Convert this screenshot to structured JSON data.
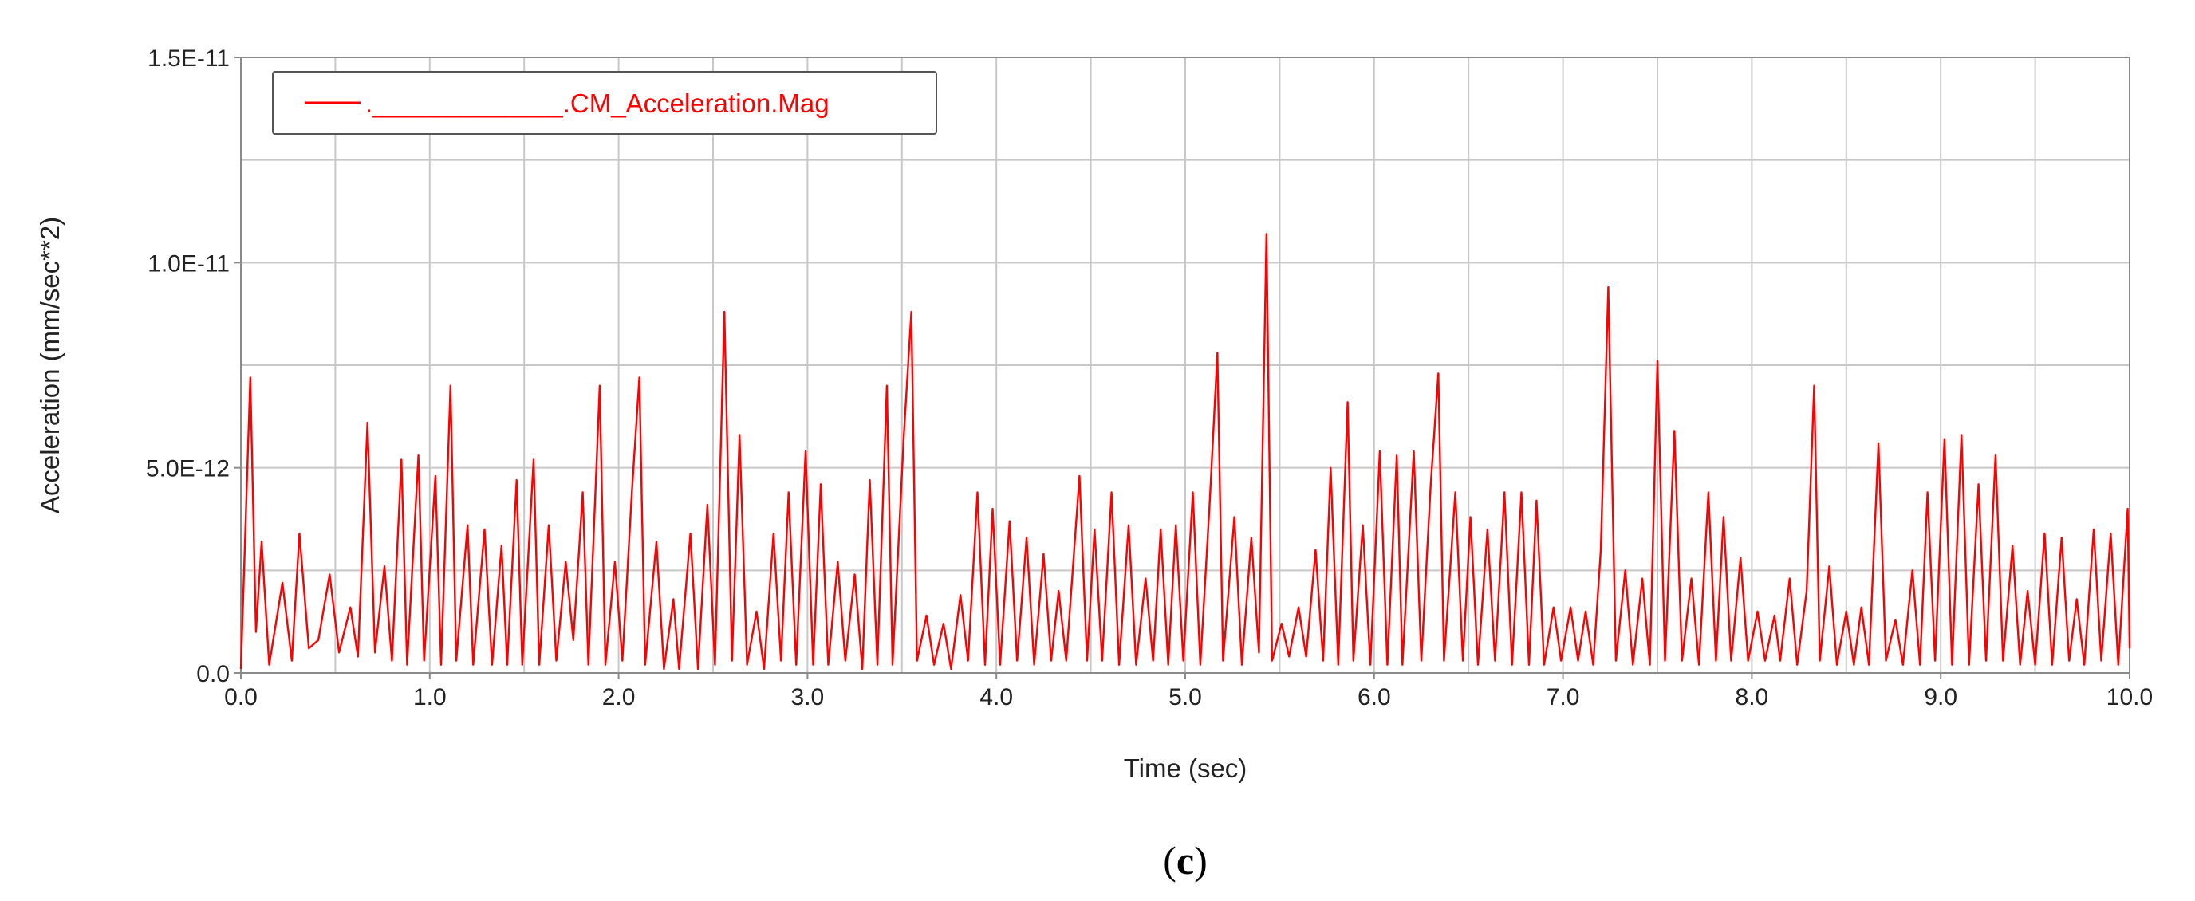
{
  "chart_data": {
    "type": "line",
    "title": "",
    "xlabel": "Time (sec)",
    "ylabel": "Acceleration (mm/sec**2)",
    "xlim": [
      0.0,
      10.0
    ],
    "ylim": [
      0.0,
      1.5e-11
    ],
    "x_ticks": [
      "0.0",
      "1.0",
      "2.0",
      "3.0",
      "4.0",
      "5.0",
      "6.0",
      "7.0",
      "8.0",
      "9.0",
      "10.0"
    ],
    "y_ticks": [
      "0.0",
      "5.0E-12",
      "1.0E-11",
      "1.5E-11"
    ],
    "grid": true,
    "legend_position": "top-left",
    "series": [
      {
        "name": "._____________.CM_Acceleration.Mag",
        "color": "#ff0000",
        "peaks": [
          [
            0.0,
            0.1
          ],
          [
            0.05,
            7.2
          ],
          [
            0.08,
            1.0
          ],
          [
            0.11,
            3.2
          ],
          [
            0.15,
            0.2
          ],
          [
            0.22,
            2.2
          ],
          [
            0.27,
            0.3
          ],
          [
            0.31,
            3.4
          ],
          [
            0.36,
            0.6
          ],
          [
            0.41,
            0.8
          ],
          [
            0.47,
            2.4
          ],
          [
            0.52,
            0.5
          ],
          [
            0.58,
            1.6
          ],
          [
            0.62,
            0.4
          ],
          [
            0.67,
            6.1
          ],
          [
            0.71,
            0.5
          ],
          [
            0.76,
            2.6
          ],
          [
            0.8,
            0.3
          ],
          [
            0.85,
            5.2
          ],
          [
            0.88,
            0.2
          ],
          [
            0.94,
            5.3
          ],
          [
            0.97,
            0.3
          ],
          [
            1.03,
            4.8
          ],
          [
            1.06,
            0.2
          ],
          [
            1.11,
            7.0
          ],
          [
            1.14,
            0.3
          ],
          [
            1.2,
            3.6
          ],
          [
            1.23,
            0.2
          ],
          [
            1.29,
            3.5
          ],
          [
            1.33,
            0.2
          ],
          [
            1.38,
            3.1
          ],
          [
            1.41,
            0.2
          ],
          [
            1.46,
            4.7
          ],
          [
            1.49,
            0.2
          ],
          [
            1.55,
            5.2
          ],
          [
            1.58,
            0.2
          ],
          [
            1.63,
            3.6
          ],
          [
            1.67,
            0.3
          ],
          [
            1.72,
            2.7
          ],
          [
            1.76,
            0.8
          ],
          [
            1.81,
            4.4
          ],
          [
            1.84,
            0.2
          ],
          [
            1.9,
            7.0
          ],
          [
            1.93,
            0.2
          ],
          [
            1.98,
            2.7
          ],
          [
            2.02,
            0.3
          ],
          [
            2.07,
            4.4
          ],
          [
            2.11,
            7.2
          ],
          [
            2.14,
            0.2
          ],
          [
            2.2,
            3.2
          ],
          [
            2.24,
            0.1
          ],
          [
            2.29,
            1.8
          ],
          [
            2.32,
            0.1
          ],
          [
            2.38,
            3.4
          ],
          [
            2.42,
            0.1
          ],
          [
            2.47,
            4.1
          ],
          [
            2.51,
            0.2
          ],
          [
            2.56,
            8.8
          ],
          [
            2.6,
            0.3
          ],
          [
            2.64,
            5.8
          ],
          [
            2.68,
            0.2
          ],
          [
            2.73,
            1.5
          ],
          [
            2.77,
            0.1
          ],
          [
            2.82,
            3.4
          ],
          [
            2.86,
            0.3
          ],
          [
            2.9,
            4.4
          ],
          [
            2.94,
            0.2
          ],
          [
            2.99,
            5.4
          ],
          [
            3.03,
            0.2
          ],
          [
            3.07,
            4.6
          ],
          [
            3.11,
            0.2
          ],
          [
            3.16,
            2.7
          ],
          [
            3.2,
            0.3
          ],
          [
            3.25,
            2.4
          ],
          [
            3.29,
            0.1
          ],
          [
            3.33,
            4.7
          ],
          [
            3.37,
            0.2
          ],
          [
            3.42,
            7.0
          ],
          [
            3.45,
            0.2
          ],
          [
            3.51,
            5.8
          ],
          [
            3.55,
            8.8
          ],
          [
            3.58,
            0.3
          ],
          [
            3.63,
            1.4
          ],
          [
            3.67,
            0.2
          ],
          [
            3.72,
            1.2
          ],
          [
            3.76,
            0.1
          ],
          [
            3.81,
            1.9
          ],
          [
            3.85,
            0.3
          ],
          [
            3.9,
            4.4
          ],
          [
            3.94,
            0.2
          ],
          [
            3.98,
            4.0
          ],
          [
            4.02,
            0.2
          ],
          [
            4.07,
            3.7
          ],
          [
            4.11,
            0.3
          ],
          [
            4.16,
            3.3
          ],
          [
            4.2,
            0.2
          ],
          [
            4.25,
            2.9
          ],
          [
            4.29,
            0.3
          ],
          [
            4.33,
            2.0
          ],
          [
            4.37,
            0.3
          ],
          [
            4.44,
            4.8
          ],
          [
            4.48,
            0.3
          ],
          [
            4.52,
            3.5
          ],
          [
            4.56,
            0.3
          ],
          [
            4.61,
            4.4
          ],
          [
            4.65,
            0.2
          ],
          [
            4.7,
            3.6
          ],
          [
            4.74,
            0.2
          ],
          [
            4.79,
            2.3
          ],
          [
            4.83,
            0.3
          ],
          [
            4.87,
            3.5
          ],
          [
            4.91,
            0.2
          ],
          [
            4.95,
            3.6
          ],
          [
            4.99,
            0.3
          ],
          [
            5.04,
            4.4
          ],
          [
            5.08,
            0.2
          ],
          [
            5.13,
            4.2
          ],
          [
            5.17,
            7.8
          ],
          [
            5.2,
            0.3
          ],
          [
            5.26,
            3.8
          ],
          [
            5.3,
            0.2
          ],
          [
            5.35,
            3.3
          ],
          [
            5.39,
            0.5
          ],
          [
            5.43,
            10.7
          ],
          [
            5.46,
            0.3
          ],
          [
            5.51,
            1.2
          ],
          [
            5.55,
            0.4
          ],
          [
            5.6,
            1.6
          ],
          [
            5.64,
            0.4
          ],
          [
            5.69,
            3.0
          ],
          [
            5.73,
            0.3
          ],
          [
            5.77,
            5.0
          ],
          [
            5.81,
            0.2
          ],
          [
            5.86,
            6.6
          ],
          [
            5.89,
            0.3
          ],
          [
            5.94,
            3.6
          ],
          [
            5.98,
            0.2
          ],
          [
            6.03,
            5.4
          ],
          [
            6.07,
            0.2
          ],
          [
            6.12,
            5.3
          ],
          [
            6.15,
            0.2
          ],
          [
            6.21,
            5.4
          ],
          [
            6.25,
            0.3
          ],
          [
            6.3,
            4.6
          ],
          [
            6.34,
            7.3
          ],
          [
            6.37,
            0.3
          ],
          [
            6.43,
            4.4
          ],
          [
            6.47,
            0.3
          ],
          [
            6.51,
            3.8
          ],
          [
            6.55,
            0.2
          ],
          [
            6.6,
            3.5
          ],
          [
            6.64,
            0.3
          ],
          [
            6.69,
            4.4
          ],
          [
            6.73,
            0.2
          ],
          [
            6.78,
            4.4
          ],
          [
            6.82,
            0.2
          ],
          [
            6.86,
            4.2
          ],
          [
            6.9,
            0.2
          ],
          [
            6.95,
            1.6
          ],
          [
            6.99,
            0.3
          ],
          [
            7.04,
            1.6
          ],
          [
            7.08,
            0.3
          ],
          [
            7.12,
            1.5
          ],
          [
            7.16,
            0.2
          ],
          [
            7.2,
            3.0
          ],
          [
            7.24,
            9.4
          ],
          [
            7.28,
            0.3
          ],
          [
            7.33,
            2.5
          ],
          [
            7.37,
            0.2
          ],
          [
            7.42,
            2.3
          ],
          [
            7.46,
            0.2
          ],
          [
            7.5,
            7.6
          ],
          [
            7.54,
            0.3
          ],
          [
            7.59,
            5.9
          ],
          [
            7.63,
            0.3
          ],
          [
            7.68,
            2.3
          ],
          [
            7.72,
            0.2
          ],
          [
            7.77,
            4.4
          ],
          [
            7.81,
            0.3
          ],
          [
            7.85,
            3.8
          ],
          [
            7.89,
            0.3
          ],
          [
            7.94,
            2.8
          ],
          [
            7.98,
            0.3
          ],
          [
            8.03,
            1.5
          ],
          [
            8.07,
            0.3
          ],
          [
            8.12,
            1.4
          ],
          [
            8.15,
            0.3
          ],
          [
            8.2,
            2.3
          ],
          [
            8.24,
            0.2
          ],
          [
            8.29,
            2.0
          ],
          [
            8.33,
            7.0
          ],
          [
            8.36,
            0.3
          ],
          [
            8.41,
            2.6
          ],
          [
            8.45,
            0.2
          ],
          [
            8.5,
            1.5
          ],
          [
            8.54,
            0.2
          ],
          [
            8.58,
            1.6
          ],
          [
            8.62,
            0.2
          ],
          [
            8.67,
            5.6
          ],
          [
            8.71,
            0.3
          ],
          [
            8.76,
            1.3
          ],
          [
            8.8,
            0.2
          ],
          [
            8.85,
            2.5
          ],
          [
            8.89,
            0.2
          ],
          [
            8.93,
            4.4
          ],
          [
            8.97,
            0.3
          ],
          [
            9.02,
            5.7
          ],
          [
            9.06,
            0.2
          ],
          [
            9.11,
            5.8
          ],
          [
            9.15,
            0.2
          ],
          [
            9.2,
            4.6
          ],
          [
            9.24,
            0.3
          ],
          [
            9.29,
            5.3
          ],
          [
            9.33,
            0.3
          ],
          [
            9.38,
            3.1
          ],
          [
            9.42,
            0.2
          ],
          [
            9.46,
            2.0
          ],
          [
            9.5,
            0.2
          ],
          [
            9.55,
            3.4
          ],
          [
            9.59,
            0.2
          ],
          [
            9.64,
            3.3
          ],
          [
            9.68,
            0.3
          ],
          [
            9.72,
            1.8
          ],
          [
            9.76,
            0.2
          ],
          [
            9.81,
            3.5
          ],
          [
            9.85,
            0.3
          ],
          [
            9.9,
            3.4
          ],
          [
            9.94,
            0.2
          ],
          [
            9.99,
            4.0
          ],
          [
            10.0,
            0.6
          ]
        ]
      }
    ]
  },
  "caption": {
    "open_paren": "(",
    "letter": "c",
    "close_paren": ")"
  }
}
